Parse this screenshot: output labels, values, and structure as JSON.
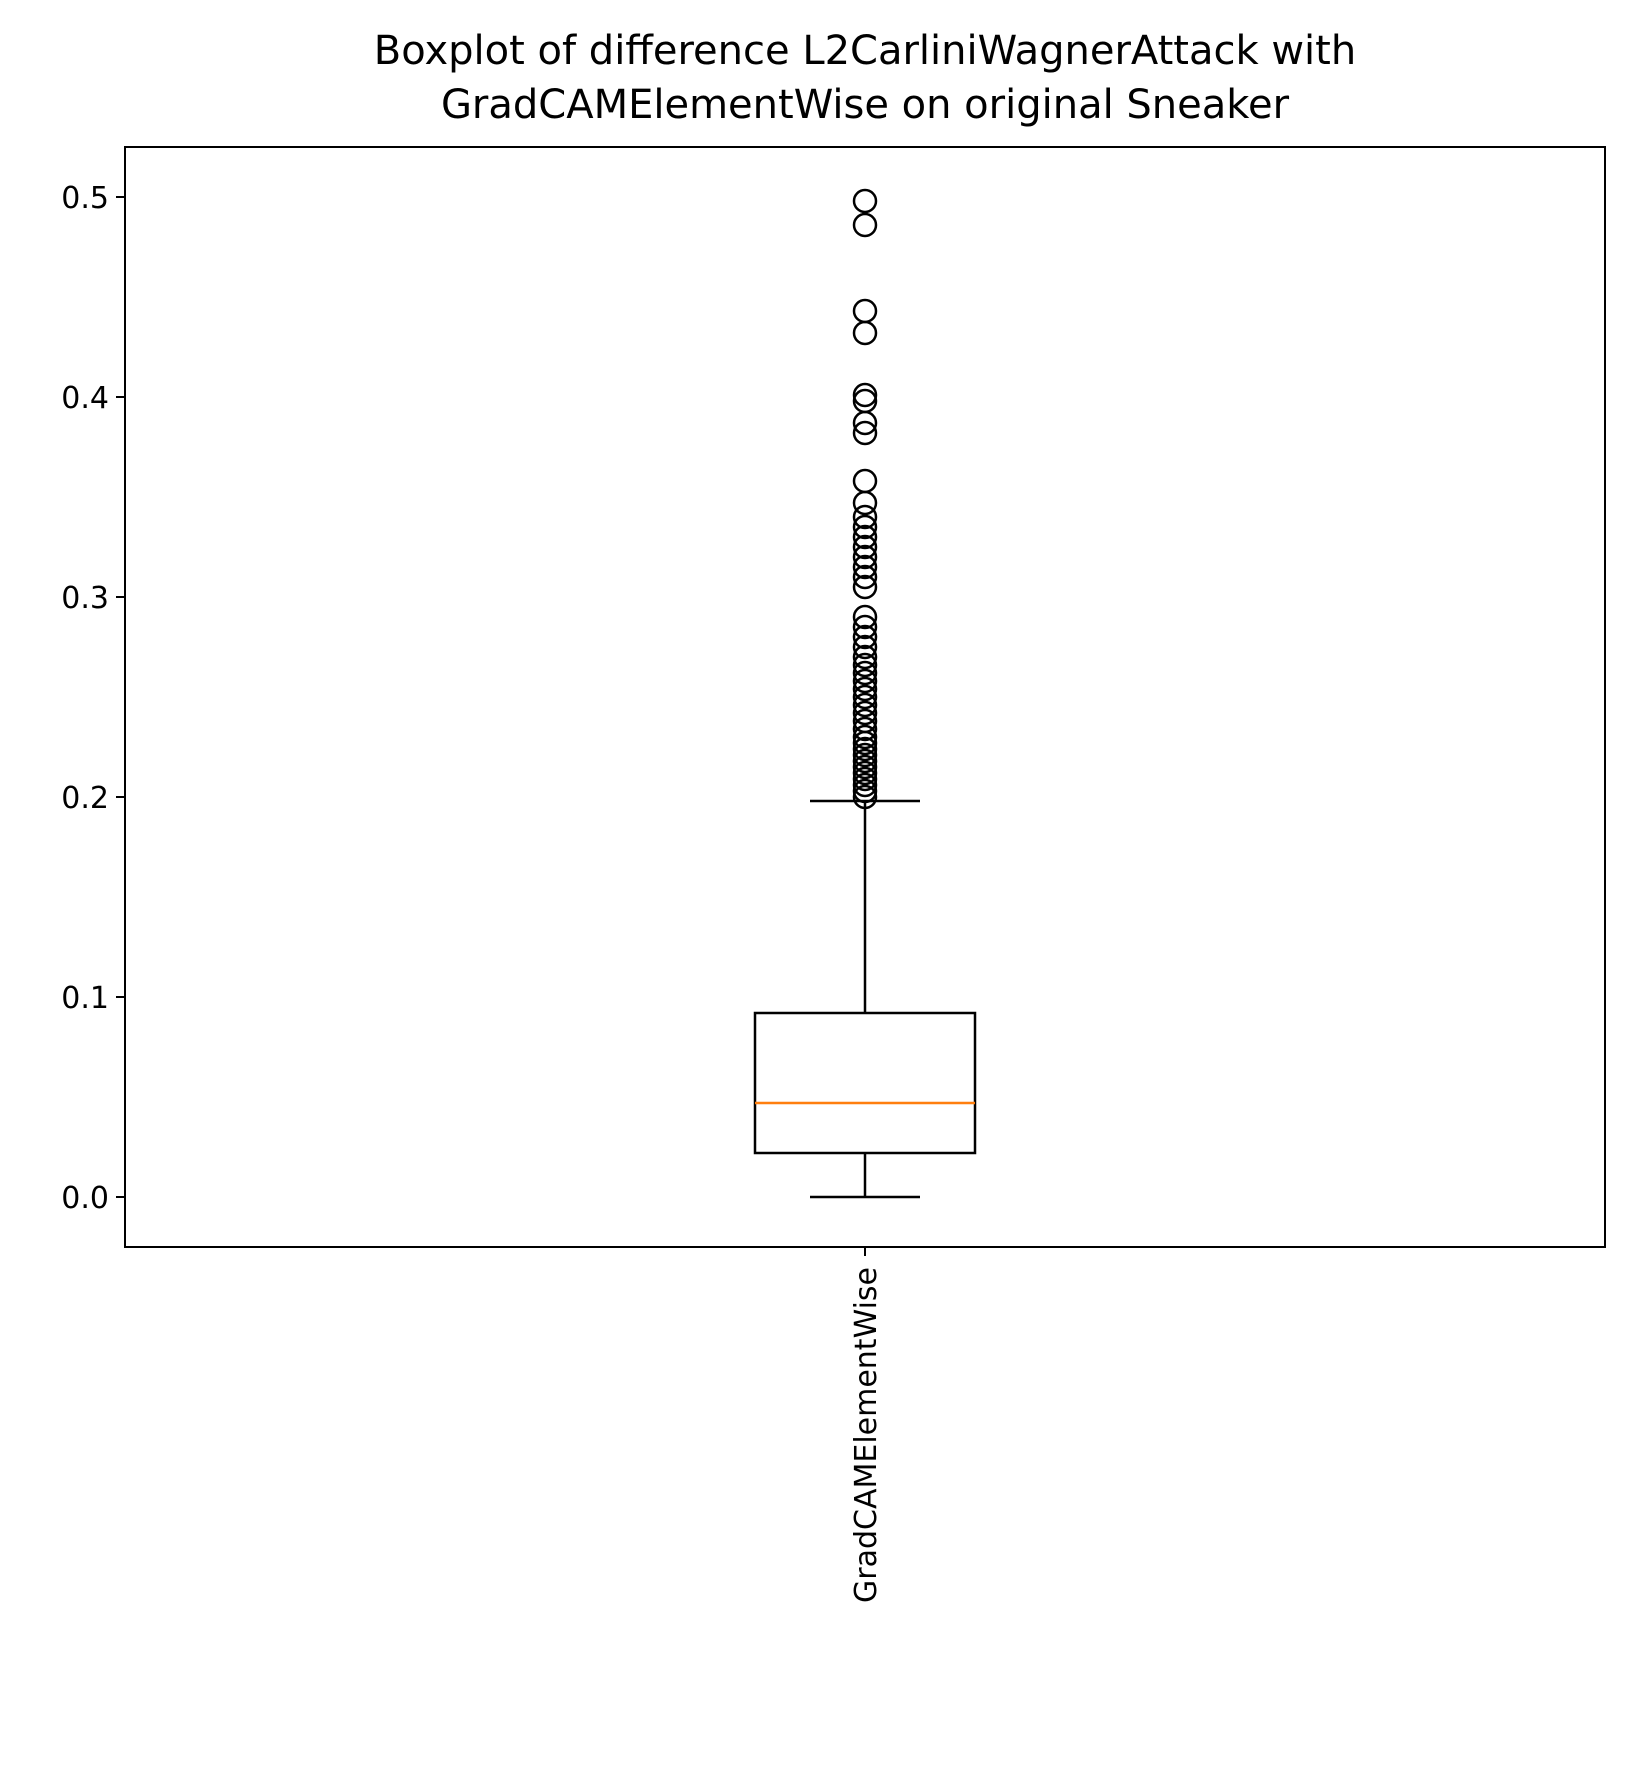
{
  "chart_data": {
    "type": "boxplot",
    "title_lines": [
      "Boxplot of difference L2CarliniWagnerAttack with",
      "GradCAMElementWise on original Sneaker"
    ],
    "xlabel": "",
    "ylabel": "",
    "categories": [
      "GradCAMElementWise"
    ],
    "ylim": [
      -0.025,
      0.525
    ],
    "yticks": [
      0.0,
      0.1,
      0.2,
      0.3,
      0.4,
      0.5
    ],
    "ytick_labels": [
      "0.0",
      "0.1",
      "0.2",
      "0.3",
      "0.4",
      "0.5"
    ],
    "box": {
      "whisker_low": 0.0,
      "q1": 0.022,
      "median": 0.047,
      "q3": 0.092,
      "whisker_high": 0.198
    },
    "outliers": [
      0.2,
      0.203,
      0.206,
      0.209,
      0.212,
      0.215,
      0.218,
      0.221,
      0.224,
      0.227,
      0.23,
      0.234,
      0.238,
      0.242,
      0.246,
      0.25,
      0.254,
      0.258,
      0.262,
      0.266,
      0.27,
      0.275,
      0.28,
      0.285,
      0.29,
      0.305,
      0.31,
      0.315,
      0.32,
      0.325,
      0.33,
      0.335,
      0.34,
      0.347,
      0.358,
      0.382,
      0.387,
      0.398,
      0.401,
      0.432,
      0.443,
      0.486,
      0.498
    ],
    "grid": false,
    "colors": {
      "box": "#000000",
      "median": "#ff7f0e",
      "outlier_edge": "#000000"
    }
  }
}
